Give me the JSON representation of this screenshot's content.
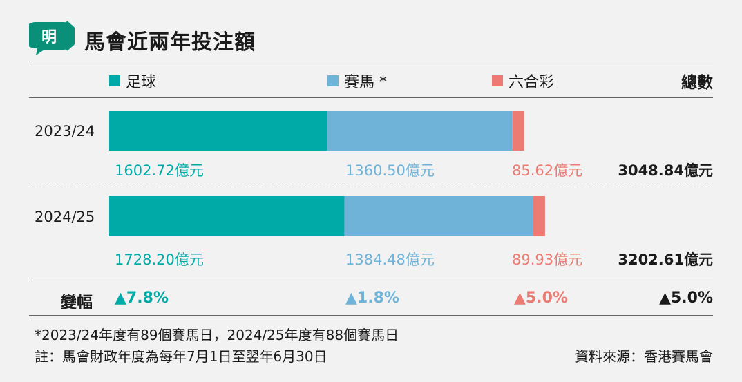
{
  "title": "馬會近兩年投注額",
  "logo_text": "明",
  "chart_data": {
    "type": "bar",
    "stacked": true,
    "orientation": "horizontal",
    "categories": [
      "2023/24",
      "2024/25"
    ],
    "series": [
      {
        "name": "足球",
        "values": [
          1602.72,
          1728.2
        ],
        "labels": [
          "1602.72億元",
          "1728.20億元"
        ],
        "color": "#00aaa6",
        "change": "▲7.8%"
      },
      {
        "name": "賽馬 *",
        "values": [
          1360.5,
          1384.48
        ],
        "labels": [
          "1360.50億元",
          "1384.48億元"
        ],
        "color": "#6fb3d8",
        "change": "▲1.8%"
      },
      {
        "name": "六合彩",
        "values": [
          85.62,
          89.93
        ],
        "labels": [
          "85.62億元",
          "89.93億元"
        ],
        "color": "#ec7b73",
        "change": "▲5.0%"
      }
    ],
    "totals_header": "總數",
    "totals": [
      "3048.84億元",
      "3202.61億元"
    ],
    "change_header": "變幅",
    "total_change": "▲5.0%"
  },
  "notes": [
    "*2023/24年度有89個賽馬日，2024/25年度有88個賽馬日",
    "註：馬會財政年度為每年7月1日至翌年6月30日"
  ],
  "source": "資料來源：香港賽馬會"
}
